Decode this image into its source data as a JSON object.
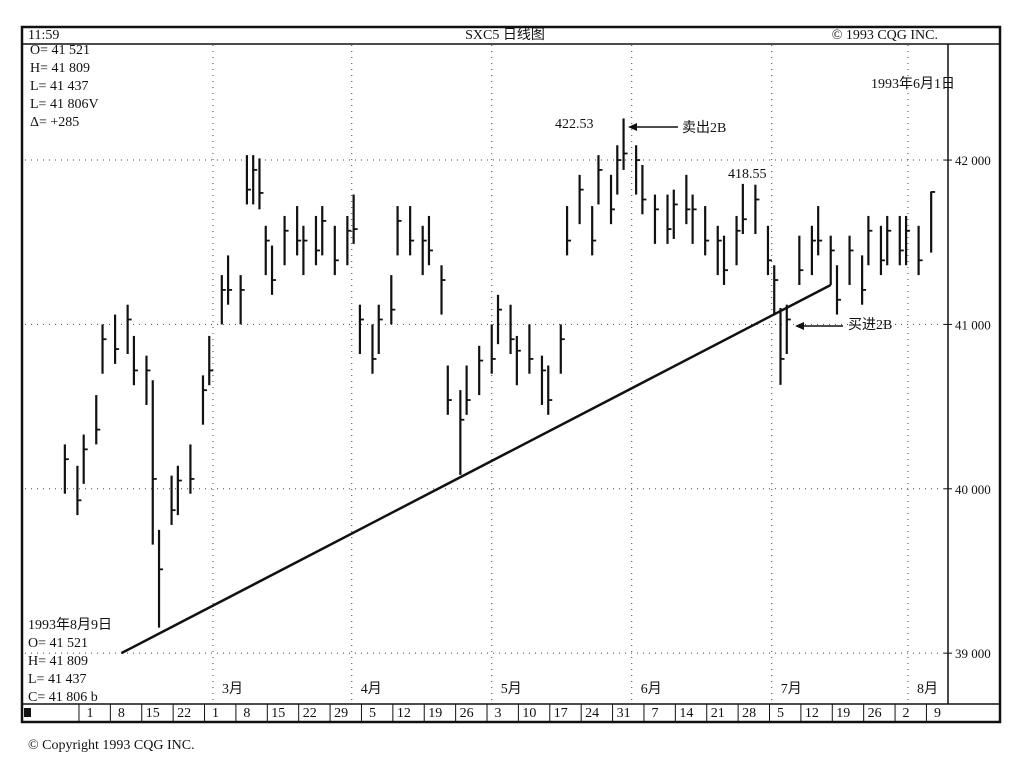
{
  "header": {
    "time": "11:59",
    "copyright": "© 1993 CQG INC.",
    "date": "1993年6月1日"
  },
  "info_top": [
    "O= 41 521",
    "H= 41 809",
    "L= 41 437",
    "L= 41 806V",
    "Δ=    +285"
  ],
  "info_bottom": [
    "1993年8月9日",
    "O= 41 521",
    "H= 41 809",
    "L= 41 437",
    "C= 41 806  b"
  ],
  "footer": "© Copyright 1993 CQG INC.",
  "chart_data": {
    "type": "ohlc",
    "title": "SXC5 日线图",
    "color": "#111111",
    "grid": true,
    "xlim": [
      0,
      147
    ],
    "ylim": [
      38715,
      42700
    ],
    "yticks": [
      {
        "value": 39000,
        "label": "39 000"
      },
      {
        "value": 40000,
        "label": "40 000"
      },
      {
        "value": 41000,
        "label": "41 000"
      },
      {
        "value": 42000,
        "label": "42 000"
      }
    ],
    "xticks": [
      {
        "value": 10,
        "label": "1"
      },
      {
        "value": 15,
        "label": "8"
      },
      {
        "value": 20,
        "label": "15"
      },
      {
        "value": 25,
        "label": "22"
      },
      {
        "value": 30,
        "label": "1"
      },
      {
        "value": 35,
        "label": "8"
      },
      {
        "value": 40,
        "label": "15"
      },
      {
        "value": 45,
        "label": "22"
      },
      {
        "value": 50,
        "label": "29"
      },
      {
        "value": 55,
        "label": "5"
      },
      {
        "value": 60,
        "label": "12"
      },
      {
        "value": 65,
        "label": "19"
      },
      {
        "value": 70,
        "label": "26"
      },
      {
        "value": 75,
        "label": "3"
      },
      {
        "value": 80,
        "label": "10"
      },
      {
        "value": 85,
        "label": "17"
      },
      {
        "value": 90,
        "label": "24"
      },
      {
        "value": 95,
        "label": "31"
      },
      {
        "value": 100,
        "label": "7"
      },
      {
        "value": 105,
        "label": "14"
      },
      {
        "value": 110,
        "label": "21"
      },
      {
        "value": 115,
        "label": "28"
      },
      {
        "value": 120,
        "label": "5"
      },
      {
        "value": 125,
        "label": "12"
      },
      {
        "value": 130,
        "label": "19"
      },
      {
        "value": 135,
        "label": "26"
      },
      {
        "value": 140,
        "label": "2"
      },
      {
        "value": 145,
        "label": "9"
      }
    ],
    "months": [
      {
        "value": 29.6,
        "label": "3月"
      },
      {
        "value": 51.7,
        "label": "4月"
      },
      {
        "value": 74,
        "label": "5月"
      },
      {
        "value": 96.3,
        "label": "6月"
      },
      {
        "value": 118.6,
        "label": "7月"
      },
      {
        "value": 140.3,
        "label": "8月"
      }
    ],
    "x": [
      6,
      8,
      9,
      11,
      12,
      14,
      16,
      17,
      19,
      20,
      21,
      23,
      24,
      26,
      28,
      29,
      31,
      32,
      34,
      35,
      36,
      37,
      38,
      39,
      41,
      43,
      44,
      46,
      47,
      49,
      51,
      52,
      53,
      55,
      56,
      58,
      59,
      61,
      63,
      64,
      66,
      67,
      69,
      70,
      72,
      74,
      75,
      77,
      78,
      80,
      82,
      83,
      85,
      86,
      88,
      90,
      91,
      93,
      94,
      95,
      97,
      98,
      100,
      102,
      103,
      105,
      106,
      108,
      110,
      111,
      113,
      114,
      116,
      118,
      119,
      120,
      121,
      123,
      125,
      126,
      128,
      129,
      131,
      133,
      134,
      136,
      137,
      139,
      140,
      142,
      144
    ],
    "high": [
      40270,
      40140,
      40330,
      40570,
      41000,
      41060,
      41120,
      40930,
      40810,
      40660,
      39750,
      40080,
      40140,
      40270,
      40690,
      40930,
      41300,
      41420,
      41300,
      42030,
      42030,
      42010,
      41600,
      41480,
      41660,
      41720,
      41600,
      41660,
      41720,
      41600,
      41660,
      41790,
      41120,
      41000,
      41120,
      41300,
      41720,
      41720,
      41600,
      41660,
      41360,
      40750,
      40600,
      40750,
      40870,
      41000,
      41180,
      41120,
      40930,
      41000,
      40810,
      40750,
      41000,
      41720,
      41910,
      41720,
      42030,
      41910,
      42090,
      42253,
      42090,
      41970,
      41790,
      41790,
      41820,
      41910,
      41790,
      41720,
      41600,
      41540,
      41660,
      41855,
      41850,
      41600,
      41360,
      41100,
      41120,
      41540,
      41600,
      41720,
      41540,
      41360,
      41540,
      41420,
      41660,
      41600,
      41660,
      41660,
      41660,
      41600,
      41809
    ],
    "low": [
      39970,
      39840,
      40030,
      40270,
      40700,
      40760,
      40820,
      40630,
      40510,
      39660,
      39155,
      39780,
      39840,
      39970,
      40390,
      40630,
      41000,
      41120,
      41000,
      41730,
      41730,
      41700,
      41300,
      41180,
      41360,
      41420,
      41300,
      41360,
      41420,
      41300,
      41360,
      41490,
      40820,
      40700,
      40820,
      41000,
      41420,
      41420,
      41300,
      41360,
      41060,
      40450,
      40085,
      40450,
      40570,
      40700,
      40880,
      40820,
      40630,
      40700,
      40510,
      40450,
      40700,
      41420,
      41610,
      41420,
      41730,
      41610,
      41790,
      41940,
      41790,
      41670,
      41490,
      41490,
      41520,
      41610,
      41490,
      41420,
      41300,
      41240,
      41360,
      41550,
      41550,
      41300,
      41060,
      40632,
      40820,
      41240,
      41300,
      41420,
      41240,
      41060,
      41240,
      41120,
      41360,
      41300,
      41360,
      41360,
      41360,
      41300,
      41437
    ],
    "close": [
      40180,
      39930,
      40240,
      40360,
      40910,
      40850,
      41030,
      40720,
      40720,
      40060,
      39510,
      39870,
      40050,
      40060,
      40600,
      40720,
      41210,
      41210,
      41210,
      41820,
      41940,
      41800,
      41510,
      41270,
      41570,
      41510,
      41510,
      41450,
      41630,
      41390,
      41570,
      41580,
      41030,
      40790,
      41030,
      41090,
      41630,
      41510,
      41510,
      41450,
      41270,
      40540,
      40420,
      40540,
      40780,
      40790,
      41090,
      40910,
      40840,
      40790,
      40720,
      40540,
      40910,
      41510,
      41820,
      41510,
      41940,
      41700,
      42000,
      42040,
      42000,
      41760,
      41700,
      41580,
      41730,
      41700,
      41700,
      41510,
      41510,
      41330,
      41570,
      41640,
      41760,
      41390,
      41270,
      40790,
      41030,
      41330,
      41510,
      41510,
      41450,
      41150,
      41450,
      41210,
      41570,
      41390,
      41570,
      41450,
      41570,
      41390,
      41806
    ],
    "trendline": {
      "x": [
        15,
        128
      ],
      "y": [
        39000,
        41240
      ]
    },
    "annotations": [
      "422.53",
      "卖出2B",
      "418.55",
      "买进2B"
    ]
  }
}
